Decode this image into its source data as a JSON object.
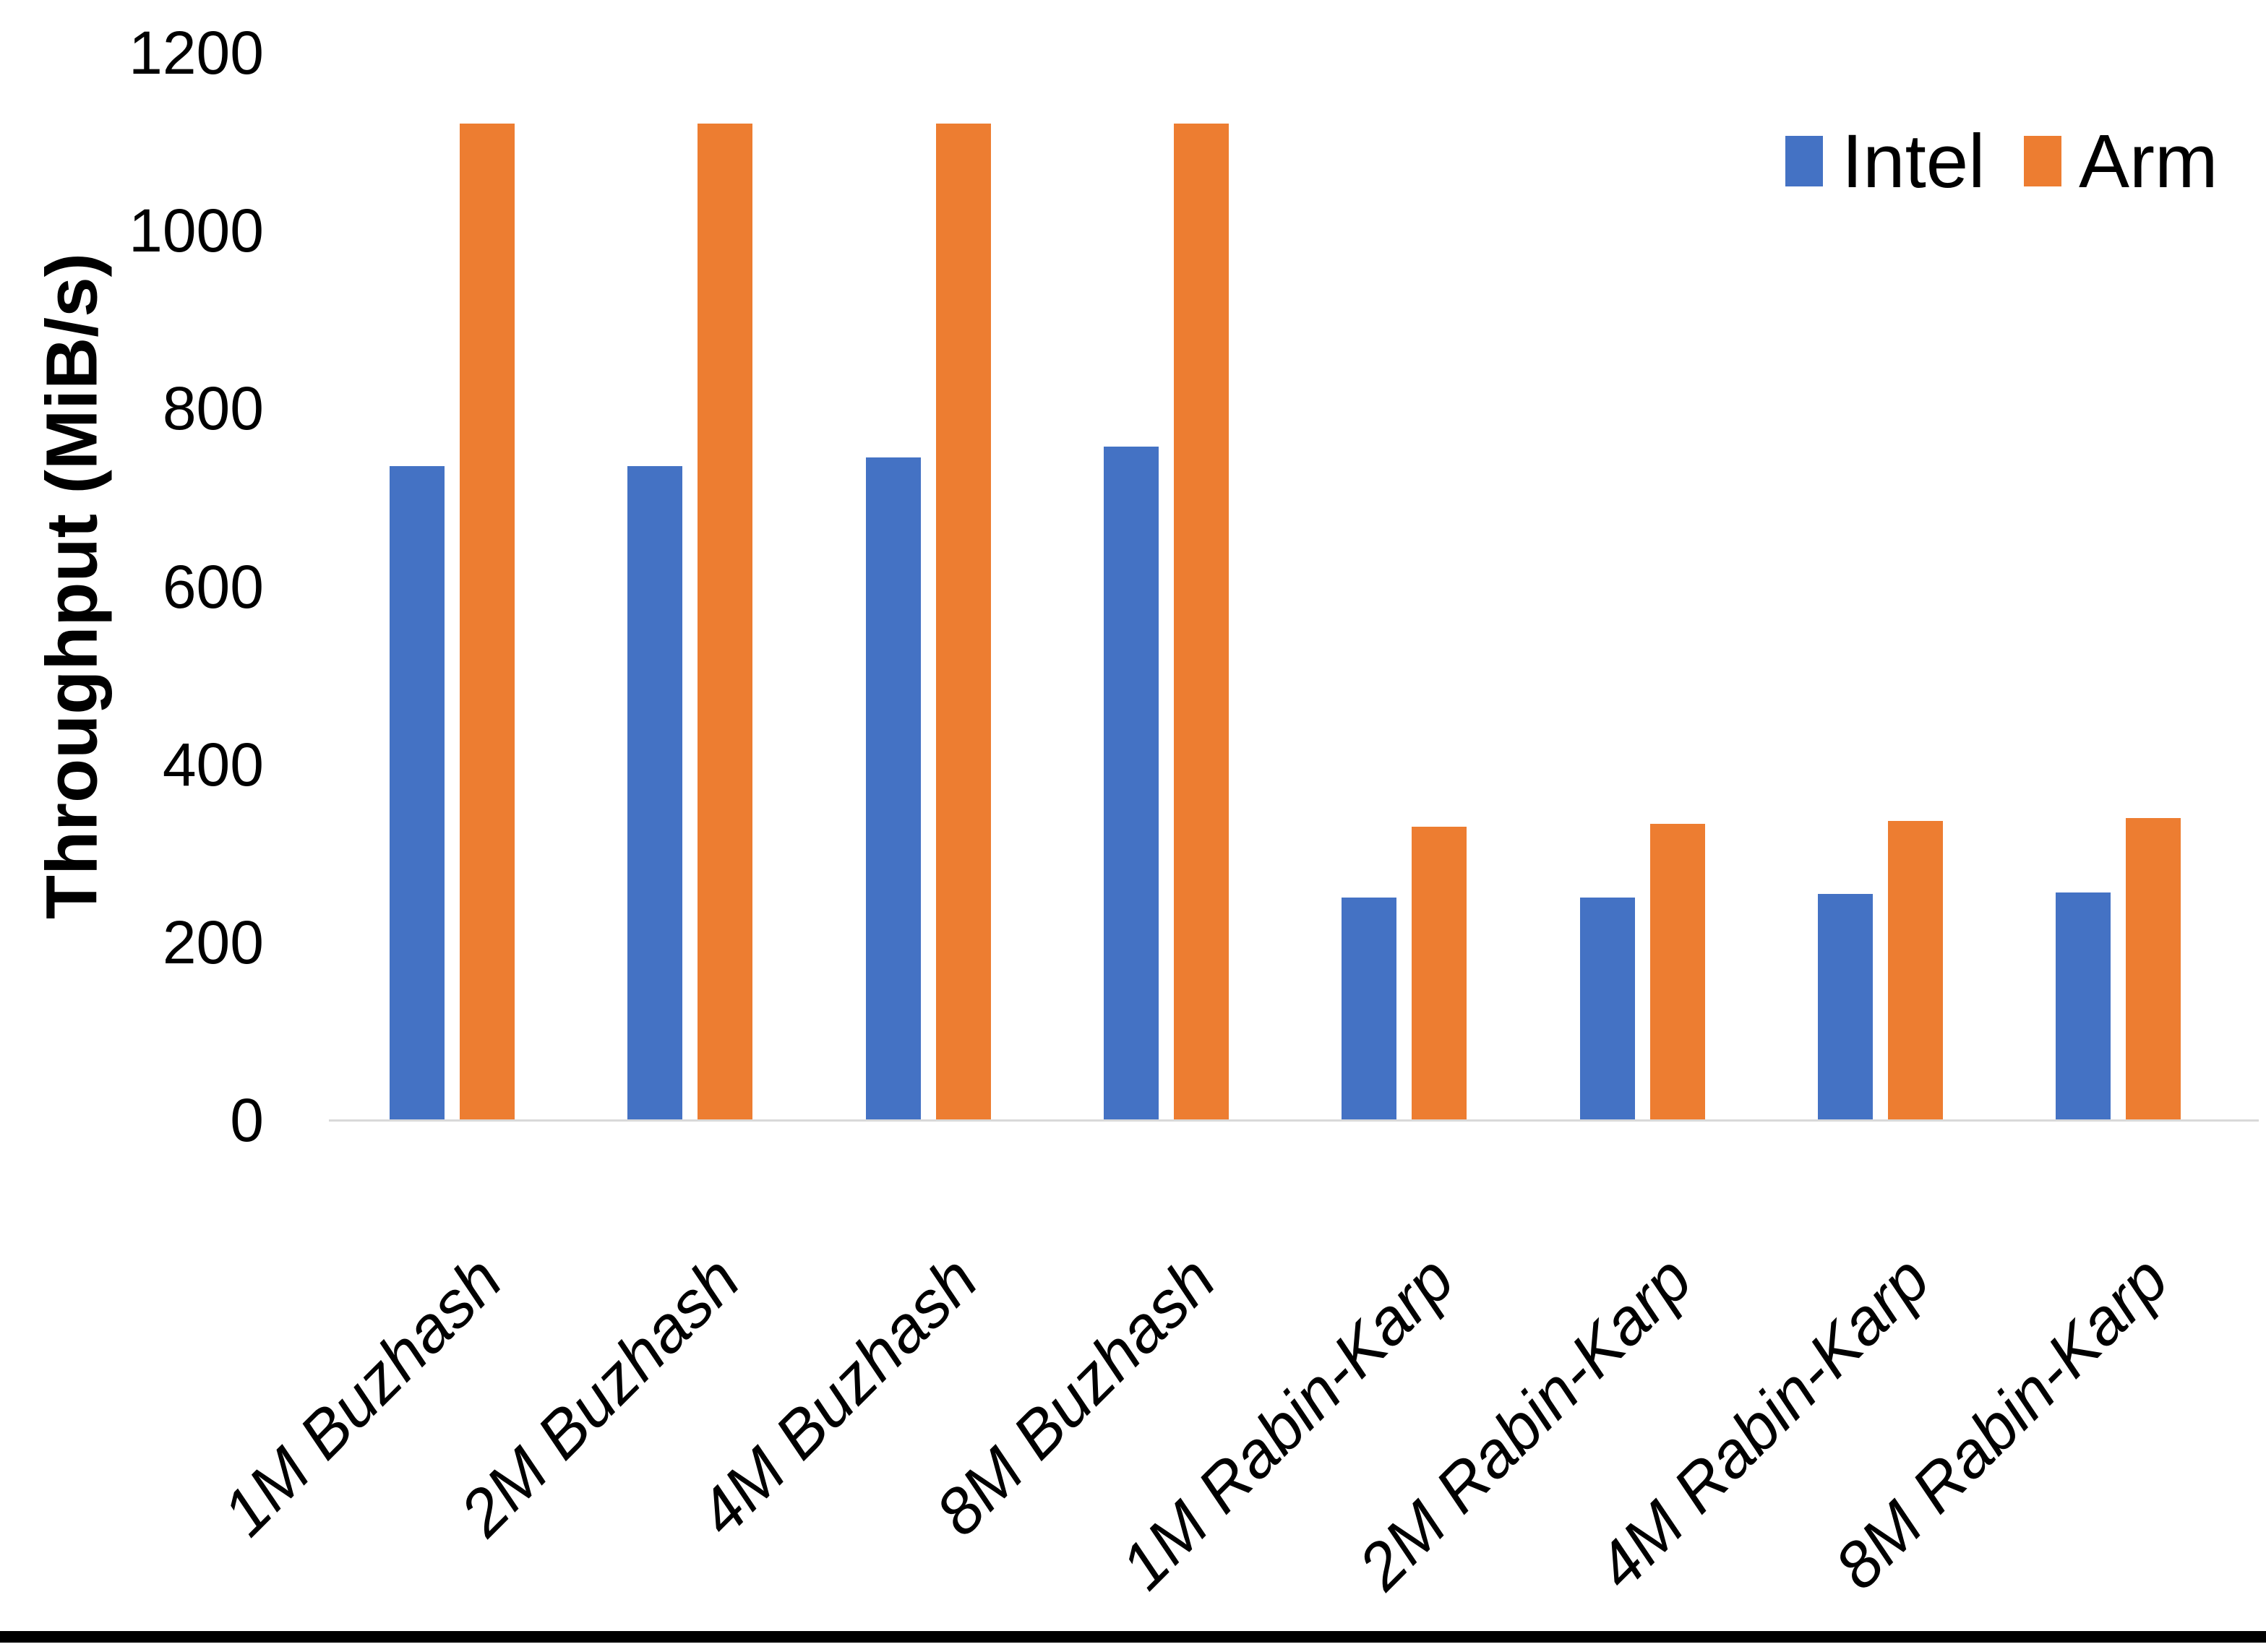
{
  "chart_data": {
    "type": "bar",
    "title": "",
    "xlabel": "",
    "ylabel": "Throughput (MiB/s)",
    "categories": [
      "1M Buzhash",
      "2M Buzhash",
      "4M Buzhash",
      "8M Buzhash",
      "1M Rabin-Karp",
      "2M Rabin-Karp",
      "4M Rabin-Karp",
      "8M Rabin-Karp"
    ],
    "series": [
      {
        "name": "Intel",
        "color": "#4472C4",
        "values": [
          735,
          735,
          745,
          757,
          250,
          250,
          254,
          256
        ]
      },
      {
        "name": "Arm",
        "color": "#ED7D31",
        "values": [
          1120,
          1120,
          1120,
          1120,
          330,
          333,
          336,
          340
        ]
      }
    ],
    "ylim": [
      0,
      1200
    ],
    "yticks": [
      0,
      200,
      400,
      600,
      800,
      1000,
      1200
    ],
    "grid": false,
    "legend_position": "top-right",
    "axis_line_color": "#D9D9D9",
    "text_color": "#000000",
    "background_color": "#FFFFFF",
    "bottom_edge_color": "#000000"
  }
}
